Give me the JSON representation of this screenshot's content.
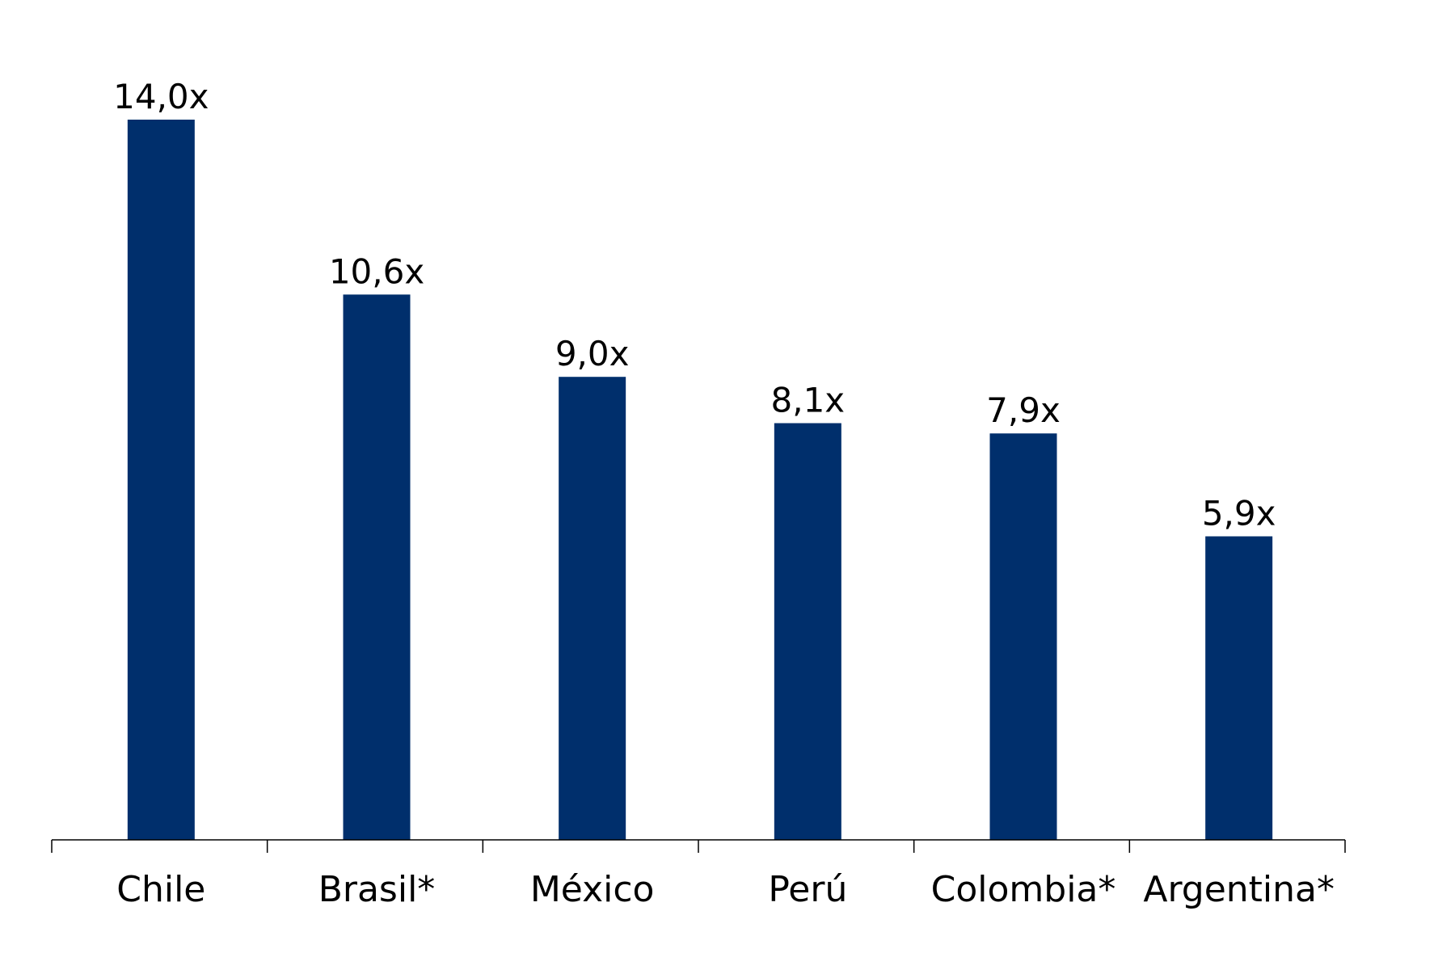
{
  "chart_data": {
    "type": "bar",
    "categories": [
      "Chile",
      "Brasil*",
      "México",
      "Perú",
      "Colombia*",
      "Argentina*"
    ],
    "values": [
      14.0,
      10.6,
      9.0,
      8.1,
      7.9,
      5.9
    ],
    "value_labels": [
      "14,0x",
      "10,6x",
      "9,0x",
      "8,1x",
      "7,9x",
      "5,9x"
    ],
    "title": "",
    "xlabel": "",
    "ylabel": "",
    "ylim": [
      0,
      16
    ],
    "grid": false,
    "legend": "none",
    "bar_color": "#002F6C"
  }
}
